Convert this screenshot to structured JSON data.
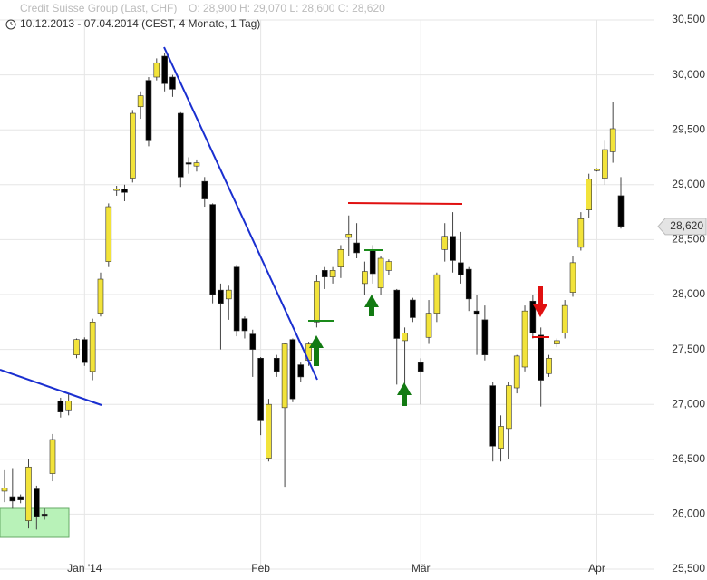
{
  "chart_data": {
    "type": "candlestick",
    "title": "Credit Suisse Group (Last, CHF)",
    "info": "O: 28,900  H: 29,070  L: 28,600  C: 28,620",
    "subtitle": "10.12.2013 - 07.04.2014 (CEST, 4 Monate, 1 Tag)",
    "categories": [
      null,
      null,
      null,
      null,
      null,
      null,
      null,
      null,
      null,
      null,
      "Jan '14",
      null,
      null,
      null,
      null,
      null,
      null,
      null,
      null,
      null,
      null,
      null,
      null,
      null,
      null,
      null,
      null,
      null,
      null,
      null,
      null,
      null,
      "Feb",
      null,
      null,
      null,
      null,
      null,
      null,
      null,
      null,
      null,
      null,
      null,
      null,
      null,
      null,
      null,
      null,
      null,
      null,
      null,
      "Mär",
      null,
      null,
      null,
      null,
      null,
      null,
      null,
      null,
      null,
      null,
      null,
      null,
      null,
      null,
      null,
      null,
      null,
      null,
      null,
      null,
      null,
      "Apr",
      null,
      null,
      null
    ],
    "open": [
      26210,
      26160,
      26160,
      25940,
      26230,
      26000,
      26370,
      27030,
      26950,
      27450,
      27590,
      27300,
      27830,
      28300,
      28950,
      28960,
      29060,
      29710,
      29950,
      29980,
      30170,
      29980,
      29650,
      29200,
      29170,
      29030,
      28820,
      28040,
      27960,
      28250,
      27780,
      27640,
      27420,
      26510,
      27420,
      26970,
      27590,
      27360,
      27400,
      27750,
      28220,
      28160,
      28250,
      28520,
      28470,
      28100,
      28400,
      28060,
      28220,
      28040,
      27580,
      27950,
      27380,
      27610,
      27830,
      28410,
      28530,
      28290,
      28230,
      27850,
      27770,
      27170,
      26600,
      26780,
      27150,
      27340,
      27940,
      27630,
      27280,
      27550,
      27650,
      28020,
      28430,
      28770,
      29130,
      29060,
      29300,
      28900
    ],
    "high": [
      26400,
      26420,
      26180,
      26500,
      26260,
      26050,
      26730,
      27060,
      27100,
      27600,
      27610,
      27780,
      28200,
      28830,
      28990,
      29000,
      29680,
      29850,
      29980,
      30150,
      30200,
      30000,
      29660,
      29250,
      29230,
      29070,
      28830,
      28100,
      28080,
      28270,
      27800,
      27680,
      27430,
      27050,
      27450,
      27560,
      27600,
      27380,
      27570,
      28180,
      28250,
      28250,
      28450,
      28720,
      28650,
      28300,
      28450,
      28350,
      28320,
      28050,
      27700,
      27970,
      27420,
      27950,
      28200,
      28650,
      28750,
      28570,
      28250,
      28000,
      27900,
      27200,
      26900,
      27200,
      27450,
      27900,
      28000,
      27700,
      27450,
      27600,
      27950,
      28350,
      28750,
      29100,
      29150,
      29400,
      29750,
      29070
    ],
    "low": [
      26110,
      26050,
      26100,
      25870,
      25860,
      25950,
      26300,
      26880,
      26900,
      27420,
      27350,
      27220,
      27800,
      28250,
      28900,
      28850,
      29020,
      29600,
      29350,
      29950,
      29850,
      29800,
      28980,
      29100,
      29120,
      28800,
      27920,
      27500,
      27770,
      27620,
      27600,
      27250,
      26720,
      26480,
      27250,
      26250,
      27020,
      27200,
      27350,
      27700,
      28050,
      28100,
      28150,
      28350,
      28330,
      28000,
      28100,
      28000,
      28180,
      27180,
      27100,
      27750,
      27000,
      27550,
      27750,
      28300,
      28200,
      28100,
      27850,
      27450,
      27400,
      26480,
      26480,
      26500,
      27100,
      27300,
      27600,
      26980,
      27250,
      27520,
      27600,
      27980,
      28400,
      28700,
      29120,
      29000,
      29200,
      28600
    ],
    "close": [
      26240,
      26120,
      26130,
      26430,
      25980,
      25990,
      26680,
      26930,
      27030,
      27590,
      27380,
      27750,
      28140,
      28800,
      28960,
      28930,
      29650,
      29810,
      29400,
      30110,
      29920,
      29870,
      29070,
      29190,
      29200,
      28870,
      28000,
      27920,
      28040,
      27670,
      27670,
      27500,
      26850,
      27000,
      27300,
      27550,
      27050,
      27250,
      27550,
      28120,
      28160,
      28220,
      28410,
      28550,
      28380,
      28210,
      28190,
      28330,
      28300,
      27600,
      27650,
      27790,
      27300,
      27830,
      28180,
      28530,
      28310,
      28180,
      27960,
      27820,
      27450,
      26620,
      26800,
      27170,
      27440,
      27850,
      27650,
      27220,
      27420,
      27580,
      27900,
      28290,
      28690,
      29050,
      29140,
      29320,
      29510,
      28620
    ],
    "up_color": "#f2e33a",
    "down_color": "#000000",
    "ylim": [
      25500,
      30500
    ],
    "yticks": [
      {
        "value": 25500,
        "label": "25,500"
      },
      {
        "value": 26000,
        "label": "26,000"
      },
      {
        "value": 26500,
        "label": "26,500"
      },
      {
        "value": 27000,
        "label": "27,000"
      },
      {
        "value": 27500,
        "label": "27,500"
      },
      {
        "value": 28000,
        "label": "28,000"
      },
      {
        "value": 28500,
        "label": "28,500"
      },
      {
        "value": 29000,
        "label": "29,000"
      },
      {
        "value": 29500,
        "label": "29,500"
      },
      {
        "value": 30000,
        "label": "30,000"
      },
      {
        "value": 30500,
        "label": "30,500"
      }
    ],
    "last": {
      "value": 28620,
      "label": "28,620"
    },
    "grid": true
  }
}
